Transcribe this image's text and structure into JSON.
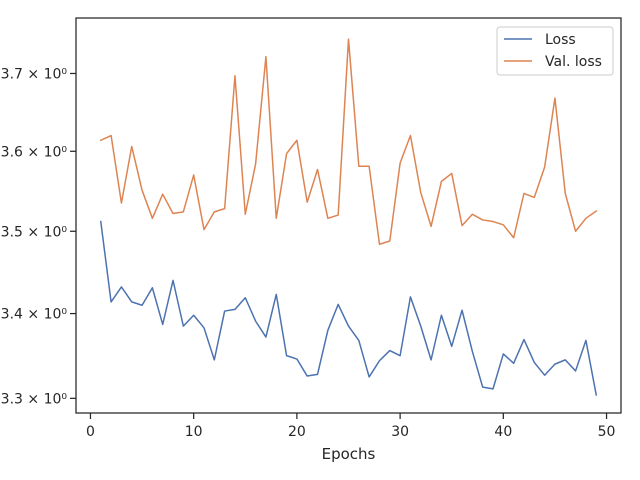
{
  "chart_data": {
    "type": "line",
    "title": "",
    "xlabel": "Epochs",
    "ylabel": "",
    "yscale": "log",
    "xlim": [
      -1.4,
      51.4
    ],
    "ylim": [
      3.283,
      3.773
    ],
    "grid": false,
    "legend_position": "top-right",
    "x_ticks": [
      0,
      10,
      20,
      30,
      40,
      50
    ],
    "x_tick_labels": [
      "0",
      "10",
      "20",
      "30",
      "40",
      "50"
    ],
    "y_ticks": [
      3.3,
      3.4,
      3.5,
      3.6,
      3.7
    ],
    "y_tick_labels": [
      "3.3 × 10⁰",
      "3.4 × 10⁰",
      "3.5 × 10⁰",
      "3.6 × 10⁰",
      "3.7 × 10⁰"
    ],
    "x": [
      1,
      2,
      3,
      4,
      5,
      6,
      7,
      8,
      9,
      10,
      11,
      12,
      13,
      14,
      15,
      16,
      17,
      18,
      19,
      20,
      21,
      22,
      23,
      24,
      25,
      26,
      27,
      28,
      29,
      30,
      31,
      32,
      33,
      34,
      35,
      36,
      37,
      38,
      39,
      40,
      41,
      42,
      43,
      44,
      45,
      46,
      47,
      48,
      49
    ],
    "series": [
      {
        "name": "Loss",
        "color": "#4c72b0",
        "values": [
          3.512,
          3.414,
          3.432,
          3.414,
          3.41,
          3.431,
          3.387,
          3.44,
          3.385,
          3.398,
          3.383,
          3.345,
          3.403,
          3.405,
          3.419,
          3.391,
          3.372,
          3.423,
          3.35,
          3.346,
          3.326,
          3.328,
          3.38,
          3.411,
          3.385,
          3.368,
          3.325,
          3.344,
          3.356,
          3.35,
          3.42,
          3.385,
          3.345,
          3.398,
          3.361,
          3.404,
          3.355,
          3.313,
          3.311,
          3.352,
          3.341,
          3.369,
          3.342,
          3.327,
          3.34,
          3.345,
          3.332,
          3.368,
          3.304
        ]
      },
      {
        "name": "Val. loss",
        "color": "#dd8452",
        "values": [
          3.614,
          3.62,
          3.535,
          3.606,
          3.551,
          3.516,
          3.546,
          3.522,
          3.524,
          3.57,
          3.502,
          3.524,
          3.528,
          3.697,
          3.521,
          3.584,
          3.722,
          3.516,
          3.597,
          3.614,
          3.536,
          3.577,
          3.516,
          3.52,
          3.745,
          3.581,
          3.581,
          3.484,
          3.488,
          3.585,
          3.62,
          3.548,
          3.506,
          3.562,
          3.572,
          3.507,
          3.521,
          3.514,
          3.512,
          3.508,
          3.492,
          3.547,
          3.542,
          3.58,
          3.668,
          3.547,
          3.5,
          3.516,
          3.525
        ]
      }
    ]
  }
}
